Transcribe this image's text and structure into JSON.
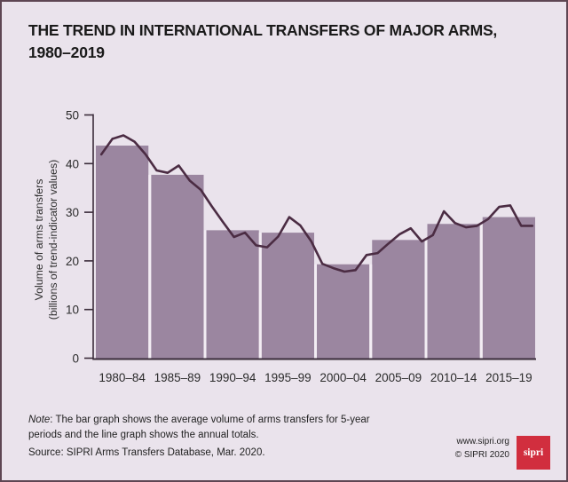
{
  "page": {
    "title_line1": "THE TREND IN INTERNATIONAL TRANSFERS OF MAJOR ARMS,",
    "title_line2": "1980–2019"
  },
  "chart_data": {
    "type": "bar+line",
    "title": "The trend in international transfers of major arms, 1980–2019",
    "ylabel_line1": "Volume of arms transfers",
    "ylabel_line2": "(billions of trend-indicator values)",
    "xlabel": "",
    "ylim": [
      0,
      50
    ],
    "y_ticks": [
      0,
      10,
      20,
      30,
      40,
      50
    ],
    "grid": false,
    "legend": "none",
    "bar_series": {
      "name": "Average volume of arms transfers for 5-year periods",
      "categories": [
        "1980–84",
        "1985–89",
        "1990–94",
        "1995–99",
        "2000–04",
        "2005–09",
        "2010–14",
        "2015–19"
      ],
      "values": [
        43.7,
        37.7,
        26.3,
        25.8,
        19.3,
        24.3,
        27.6,
        29.0
      ]
    },
    "line_series": {
      "name": "Annual totals",
      "x": [
        1980,
        1981,
        1982,
        1983,
        1984,
        1985,
        1986,
        1987,
        1988,
        1989,
        1990,
        1991,
        1992,
        1993,
        1994,
        1995,
        1996,
        1997,
        1998,
        1999,
        2000,
        2001,
        2002,
        2003,
        2004,
        2005,
        2006,
        2007,
        2008,
        2009,
        2010,
        2011,
        2012,
        2013,
        2014,
        2015,
        2016,
        2017,
        2018,
        2019
      ],
      "values": [
        41.9,
        45.1,
        45.8,
        44.5,
        41.9,
        38.6,
        38.1,
        39.6,
        36.5,
        34.6,
        31.2,
        28.0,
        24.9,
        25.8,
        23.2,
        22.8,
        25.0,
        29.0,
        27.3,
        24.0,
        19.4,
        18.5,
        17.8,
        18.1,
        21.2,
        21.6,
        23.6,
        25.5,
        26.7,
        24.0,
        25.3,
        30.2,
        27.8,
        26.9,
        27.2,
        28.6,
        31.1,
        31.4,
        27.2,
        27.2
      ]
    }
  },
  "footnotes": {
    "note_label": "Note",
    "note_text": ": The bar graph shows the average volume of arms transfers for 5-year periods and the line graph shows the annual totals.",
    "source_label": "Source",
    "source_text": ": SIPRI Arms Transfers Database, Mar. 2020."
  },
  "footer": {
    "website": "www.sipri.org",
    "copyright": "© SIPRI 2020",
    "logo_text": "sipri"
  },
  "colors": {
    "background": "#eae3ec",
    "border": "#5e4653",
    "bar_fill": "#9b86a0",
    "bar_gap": "#f3edf4",
    "line": "#4b2c43",
    "axis": "#3a2c3a",
    "tick_text": "#2b2b2b",
    "title_text": "#1a1a1a",
    "logo_red": "#d12e3e"
  }
}
